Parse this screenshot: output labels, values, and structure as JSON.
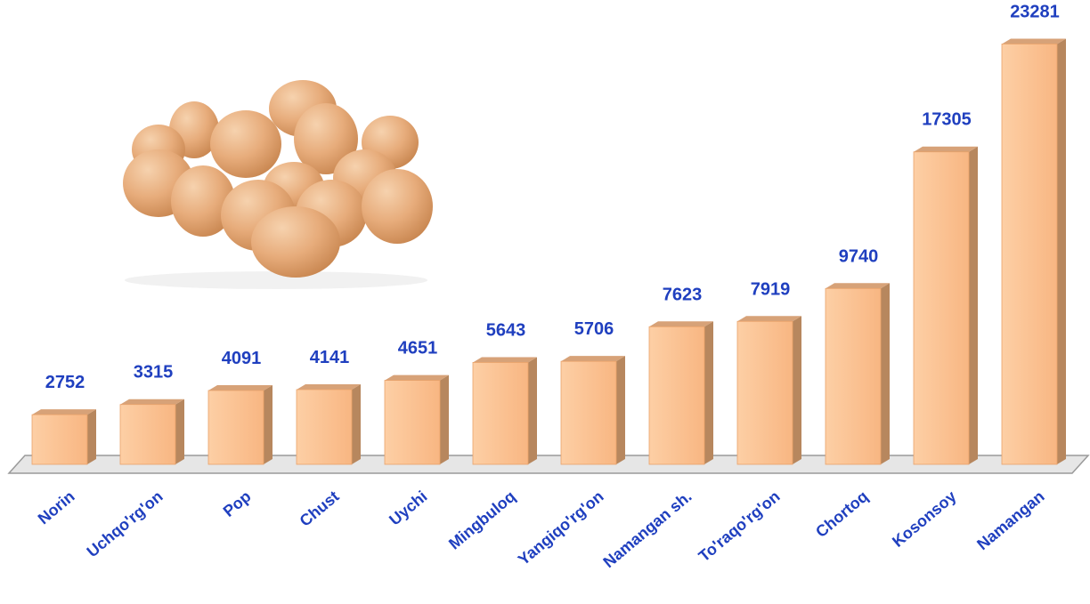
{
  "chart_data": {
    "type": "bar",
    "style": "3d",
    "categories": [
      "Norin",
      "Uchqo'rg'on",
      "Pop",
      "Chust",
      "Uychi",
      "Mingbuloq",
      "Yangiqo'rg'on",
      "Namangan sh.",
      "To'raqo'rg'on",
      "Chortoq",
      "Kosonsoy",
      "Namangan"
    ],
    "values": [
      2752,
      3315,
      4091,
      4141,
      4651,
      5643,
      5706,
      7623,
      7919,
      9740,
      17305,
      23281
    ],
    "value_labels": [
      "2752",
      "3315",
      "4091",
      "4141",
      "4651",
      "5643",
      "5706",
      "7623",
      "7919",
      "9740",
      "17305",
      "23281"
    ],
    "title": "",
    "xlabel": "",
    "ylabel": "",
    "ylim": [
      0,
      23500
    ],
    "grid": false,
    "legend": "none",
    "decoration_icon": "eggs-picture"
  },
  "colors": {
    "bar_front": "#FBC08F",
    "bar_side": "#B7875E",
    "bar_top": "#D7A278",
    "label": "#1F3FBF",
    "floor": "#CCCCCC"
  }
}
